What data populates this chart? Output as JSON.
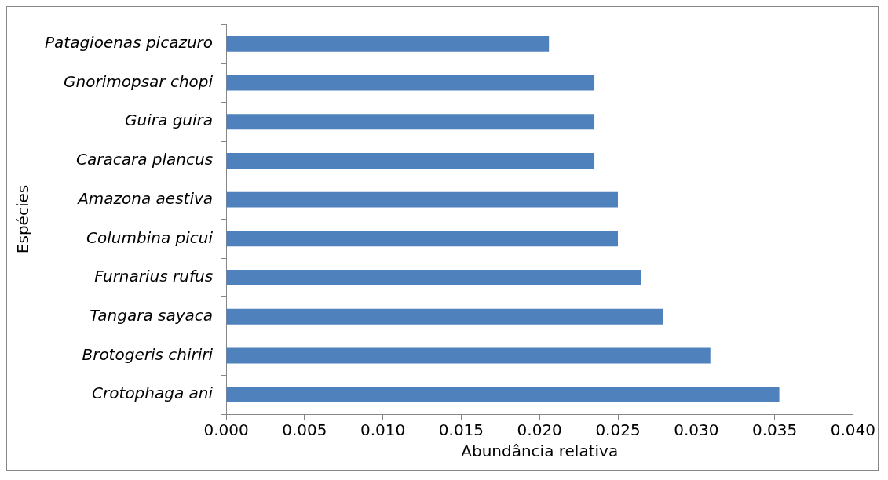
{
  "chart_data": {
    "type": "bar",
    "orientation": "horizontal",
    "xlabel": "Abundância relativa",
    "ylabel": "Espécies",
    "categories": [
      "Patagioenas picazuro",
      "Gnorimopsar chopi",
      "Guira guira",
      "Caracara plancus",
      "Amazona aestiva",
      "Columbina picui",
      "Furnarius rufus",
      "Tangara sayaca",
      "Brotogeris chiriri",
      "Crotophaga ani"
    ],
    "values": [
      0.0206,
      0.0235,
      0.0235,
      0.0235,
      0.025,
      0.025,
      0.0265,
      0.0279,
      0.0309,
      0.0353
    ],
    "color": "#4f81bd",
    "xlim": [
      0,
      0.04
    ],
    "xticks": [
      {
        "value": 0,
        "label": "0.000"
      },
      {
        "value": 0.005,
        "label": "0.005"
      },
      {
        "value": 0.01,
        "label": "0.010"
      },
      {
        "value": 0.015,
        "label": "0.015"
      },
      {
        "value": 0.02,
        "label": "0.020"
      },
      {
        "value": 0.025,
        "label": "0.025"
      },
      {
        "value": 0.03,
        "label": "0.030"
      },
      {
        "value": 0.035,
        "label": "0.035"
      },
      {
        "value": 0.04,
        "label": "0.040"
      }
    ],
    "grid": false,
    "legend": false
  }
}
